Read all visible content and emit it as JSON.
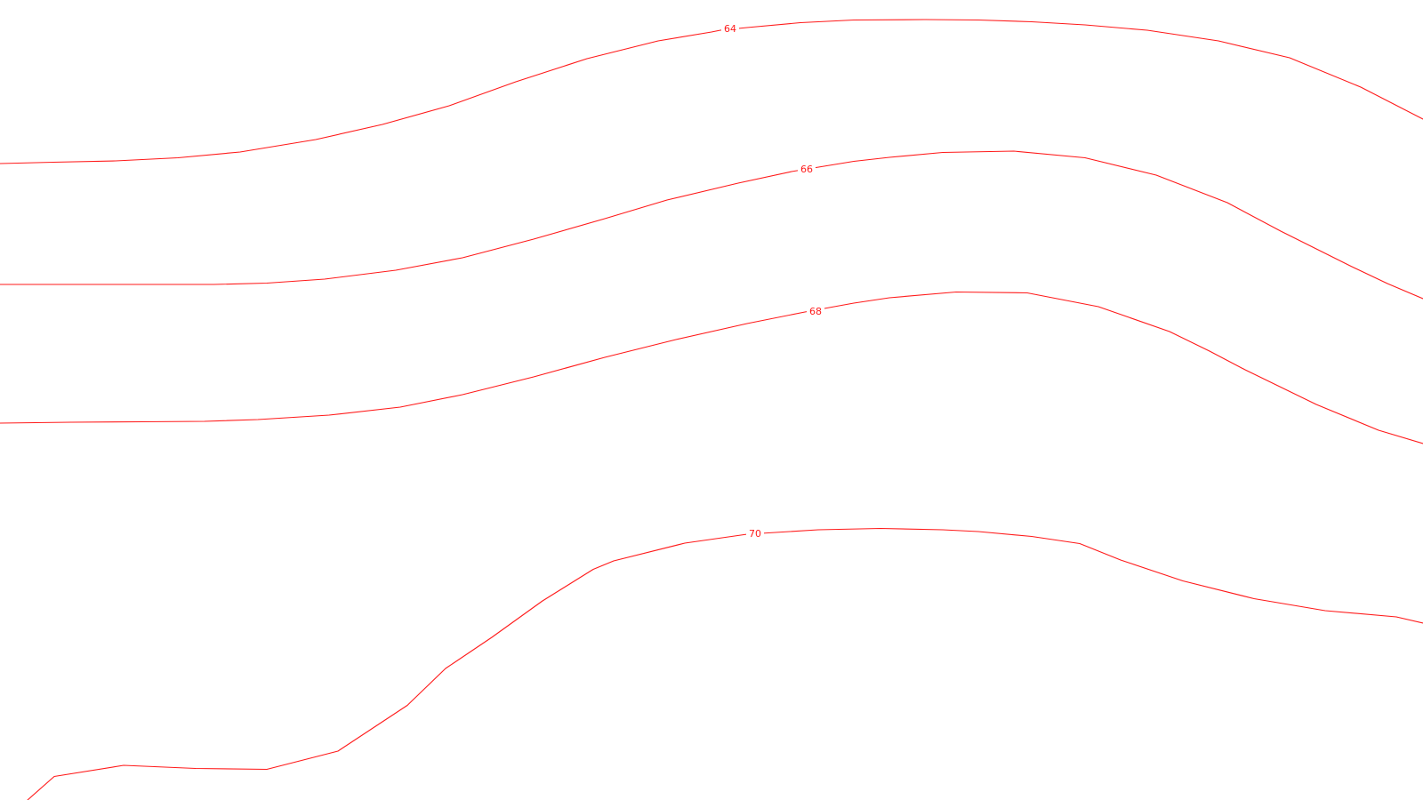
{
  "map": {
    "line_color": "#ff1a1a",
    "background_color": "#ffffff",
    "contours": [
      {
        "id": "contour-64",
        "label": "64"
      },
      {
        "id": "contour-66",
        "label": "66"
      },
      {
        "id": "contour-68",
        "label": "68"
      },
      {
        "id": "contour-70",
        "label": "70"
      }
    ]
  }
}
